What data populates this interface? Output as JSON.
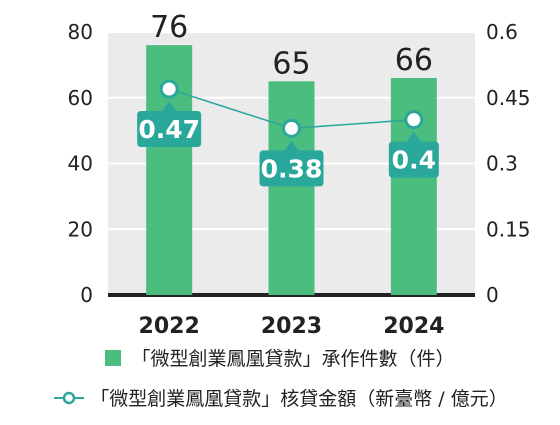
{
  "chart_data": {
    "type": "bar",
    "categories": [
      "2022",
      "2023",
      "2024"
    ],
    "series": [
      {
        "name": "「微型創業鳳凰貸款」承作件數（件）",
        "type": "bar",
        "axis": "left",
        "values": [
          76,
          65,
          66
        ],
        "labels": [
          "76",
          "65",
          "66"
        ],
        "color": "#4bbe7f"
      },
      {
        "name": "「微型創業鳳凰貸款」核貸金額（新臺幣 / 億元）",
        "type": "line",
        "axis": "right",
        "values": [
          0.47,
          0.38,
          0.4
        ],
        "labels": [
          "0.47",
          "0.38",
          "0.4"
        ],
        "color": "#2aa79b"
      }
    ],
    "yleft": {
      "range": [
        0,
        80
      ],
      "ticks": [
        "0",
        "20",
        "40",
        "60",
        "80"
      ]
    },
    "yright": {
      "range": [
        0,
        0.6
      ],
      "ticks": [
        "0",
        "0.15",
        "0.3",
        "0.45",
        "0.6"
      ]
    },
    "plot_background": "#ebebeb",
    "grid": true,
    "legend_position": "bottom"
  }
}
